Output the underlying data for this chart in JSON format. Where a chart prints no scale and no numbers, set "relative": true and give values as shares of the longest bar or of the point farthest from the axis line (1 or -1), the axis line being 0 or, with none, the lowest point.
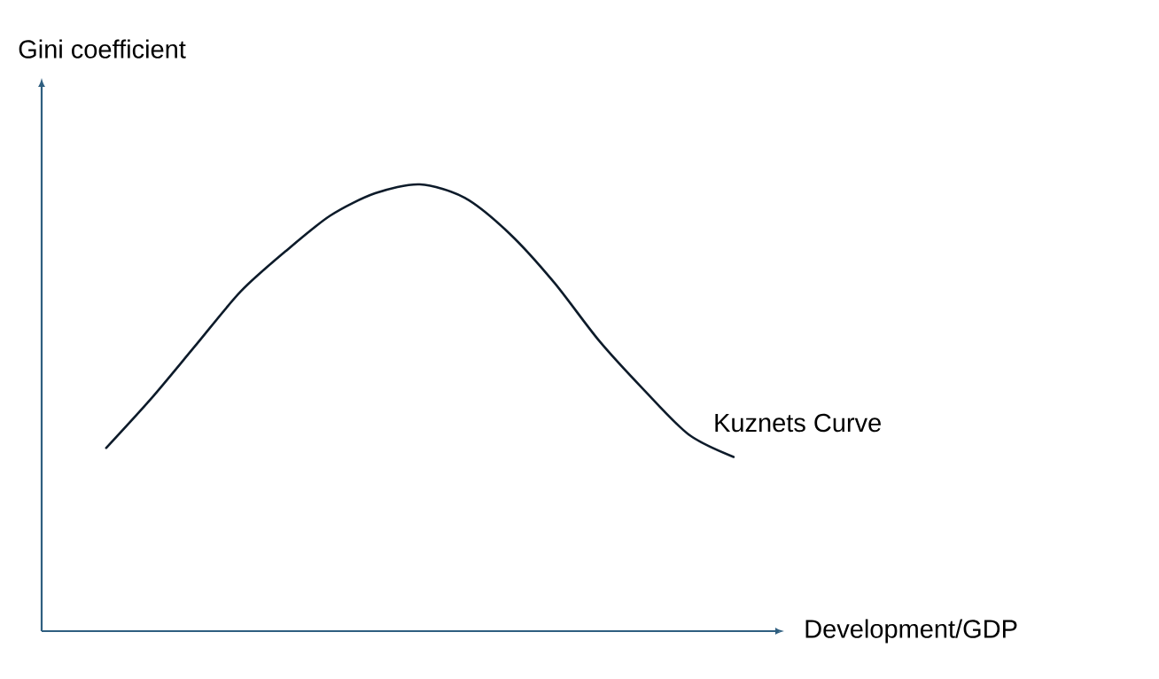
{
  "chart_data": {
    "type": "line",
    "relative": true,
    "xlabel": "Development/GDP",
    "ylabel": "Gini coefficient",
    "categories": [
      null,
      null,
      null,
      null,
      null,
      null,
      null,
      null,
      null,
      null,
      null,
      null,
      null,
      null,
      null
    ],
    "series": [
      {
        "name": "Kuznets Curve",
        "color": "#0d1b2a",
        "values": [
          0.41,
          0.52,
          0.64,
          0.76,
          0.85,
          0.93,
          0.98,
          1.0,
          0.97,
          0.89,
          0.78,
          0.65,
          0.54,
          0.44,
          0.39
        ]
      }
    ]
  }
}
